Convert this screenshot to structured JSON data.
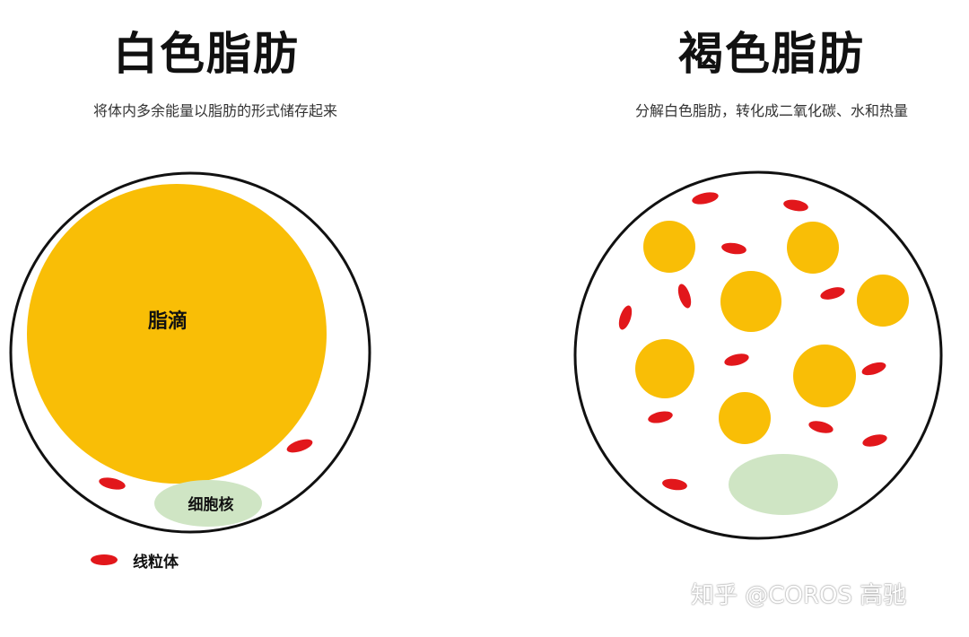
{
  "white_fat": {
    "title": "白色脂肪",
    "subtitle": "将体内多余能量以脂肪的形式储存起来",
    "lipid_droplet_label": "脂滴",
    "nucleus_label": "细胞核"
  },
  "brown_fat": {
    "title": "褐色脂肪",
    "subtitle": "分解白色脂肪，转化成二氧化碳、水和热量"
  },
  "legend": {
    "mitochondria_label": "线粒体"
  },
  "watermark": "知乎 @COROS 高驰",
  "colors": {
    "lipid": "#F9BE06",
    "mitochondria": "#E2171B",
    "nucleus": "#CFE5C4",
    "outline": "#111111"
  }
}
